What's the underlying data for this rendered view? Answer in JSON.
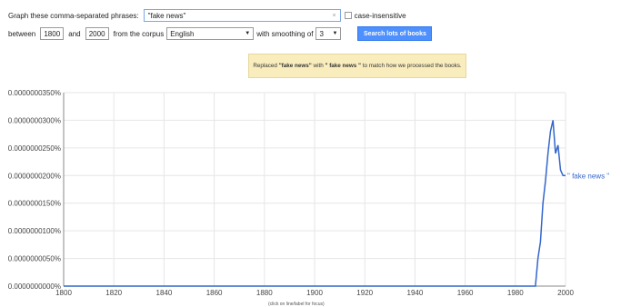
{
  "query_bar": {
    "label": "Graph these comma-separated phrases:",
    "phrase_value": "\"fake news\"",
    "clear_glyph": "×",
    "case_label": "case-insensitive"
  },
  "range_bar": {
    "between_label": "between",
    "start_year": "1800",
    "and_label": "and",
    "end_year": "2000",
    "corpus_label": "from the corpus",
    "corpus_value": "English",
    "smoothing_label": "with smoothing of",
    "smoothing_value": "3",
    "search_button": "Search lots of books"
  },
  "notice": {
    "prefix": "Replaced",
    "original": "\"fake news\"",
    "middle": "with",
    "replacement": "\" fake news \"",
    "suffix": "to match how we processed the books."
  },
  "footer_hint": "(click on line/label for focus)",
  "colors": {
    "line": "#3366cc",
    "button": "#4d90fe",
    "notice_bg": "#f9edbe",
    "grid": "#e6e6e6"
  },
  "chart_data": {
    "type": "line",
    "x_ticks": [
      "1800",
      "1820",
      "1840",
      "1860",
      "1880",
      "1900",
      "1920",
      "1940",
      "1960",
      "1980",
      "2000"
    ],
    "y_ticks": [
      "0.0000000000%",
      "0.0000000050%",
      "0.0000000100%",
      "0.0000000150%",
      "0.0000000200%",
      "0.0000000250%",
      "0.0000000300%",
      "0.0000000350%"
    ],
    "xlim": [
      1800,
      2000
    ],
    "ylim": [
      0,
      3.5e-08
    ],
    "grid": true,
    "series": [
      {
        "name": "\" fake news \"",
        "color": "#3366cc",
        "x": [
          1800,
          1850,
          1900,
          1950,
          1985,
          1988,
          1989,
          1990,
          1991,
          1992,
          1993,
          1994,
          1995,
          1996,
          1997,
          1998,
          1999,
          2000
        ],
        "y": [
          0,
          0,
          0,
          0,
          0,
          0,
          5e-09,
          8e-09,
          1.5e-08,
          1.9e-08,
          2.4e-08,
          2.8e-08,
          3e-08,
          2.4e-08,
          2.55e-08,
          2.1e-08,
          2e-08,
          2e-08
        ]
      }
    ]
  }
}
